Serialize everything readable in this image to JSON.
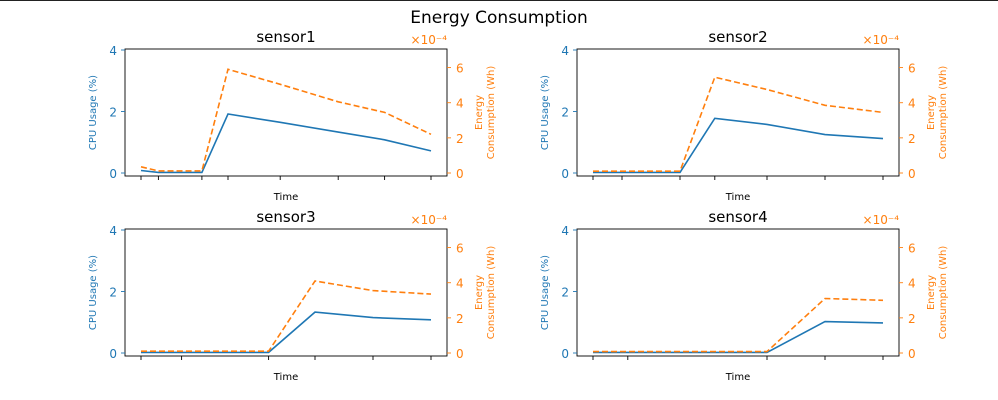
{
  "figure": {
    "title": "Energy Consumption",
    "colors": {
      "cpu": "#1f77b4",
      "energy": "#ff7f0e",
      "axis": "#000000"
    }
  },
  "chart_data": [
    {
      "type": "line",
      "title": "sensor1",
      "xlabel": "Time",
      "ylabel": "CPU Usage (%)",
      "y2label": "Energy Consumption (Wh)",
      "y2_scale_label": "×10⁻⁴",
      "ylim": [
        0,
        4
      ],
      "y2lim": [
        0,
        7
      ],
      "yticks": [
        "0",
        "2",
        "4"
      ],
      "y2ticks": [
        "0",
        "2",
        "4",
        "6"
      ],
      "x": [
        0,
        1,
        2,
        3,
        4,
        5,
        6,
        7
      ],
      "series": [
        {
          "values": [
            0.08,
            0.02,
            0.02,
            1.92,
            1.65,
            1.33,
            1.08,
            0.72
          ],
          "style": "solid",
          "axis": "left"
        },
        {
          "values": [
            0.35,
            0.12,
            0.12,
            5.9,
            5.05,
            4.05,
            3.45,
            2.2
          ],
          "style": "dashed",
          "axis": "right"
        }
      ],
      "x_points": [
        0,
        0.6,
        2.1,
        3.0,
        4.8,
        6.8,
        8.4,
        10.0
      ]
    },
    {
      "type": "line",
      "title": "sensor2",
      "xlabel": "Time",
      "ylabel": "CPU Usage (%)",
      "y2label": "Energy Consumption (Wh)",
      "y2_scale_label": "×10⁻⁴",
      "ylim": [
        0,
        4
      ],
      "y2lim": [
        0,
        7
      ],
      "yticks": [
        "0",
        "2",
        "4"
      ],
      "y2ticks": [
        "0",
        "2",
        "4",
        "6"
      ],
      "series": [
        {
          "values": [
            0.02,
            0.02,
            0.02,
            1.78,
            1.58,
            1.25,
            1.12
          ],
          "style": "solid",
          "axis": "left"
        },
        {
          "values": [
            0.1,
            0.1,
            0.1,
            5.45,
            4.75,
            3.85,
            3.45
          ],
          "style": "dashed",
          "axis": "right"
        }
      ],
      "x_points": [
        0,
        1.0,
        3.0,
        4.2,
        6.0,
        8.0,
        10.0
      ]
    },
    {
      "type": "line",
      "title": "sensor3",
      "xlabel": "Time",
      "ylabel": "CPU Usage (%)",
      "y2label": "Energy Consumption (Wh)",
      "y2_scale_label": "×10⁻⁴",
      "ylim": [
        0,
        4
      ],
      "y2lim": [
        0,
        7
      ],
      "yticks": [
        "0",
        "2",
        "4"
      ],
      "y2ticks": [
        "0",
        "2",
        "4",
        "6"
      ],
      "series": [
        {
          "values": [
            0.02,
            0.02,
            0.02,
            1.33,
            1.15,
            1.08
          ],
          "style": "solid",
          "axis": "left"
        },
        {
          "values": [
            0.1,
            0.1,
            0.1,
            4.1,
            3.55,
            3.35
          ],
          "style": "dashed",
          "axis": "right"
        }
      ],
      "x_points": [
        0,
        1.4,
        4.4,
        6.0,
        8.0,
        10.0
      ]
    },
    {
      "type": "line",
      "title": "sensor4",
      "xlabel": "Time",
      "ylabel": "CPU Usage (%)",
      "y2label": "Energy Consumption (Wh)",
      "y2_scale_label": "×10⁻⁴",
      "ylim": [
        0,
        4
      ],
      "y2lim": [
        0,
        7
      ],
      "yticks": [
        "0",
        "2",
        "4"
      ],
      "y2ticks": [
        "0",
        "2",
        "4",
        "6"
      ],
      "series": [
        {
          "values": [
            0.02,
            0.02,
            0.02,
            1.02,
            0.98
          ],
          "style": "solid",
          "axis": "left"
        },
        {
          "values": [
            0.08,
            0.08,
            0.08,
            3.1,
            3.0
          ],
          "style": "dashed",
          "axis": "right"
        }
      ],
      "x_points": [
        0,
        1.2,
        6.0,
        8.0,
        10.0
      ]
    }
  ]
}
